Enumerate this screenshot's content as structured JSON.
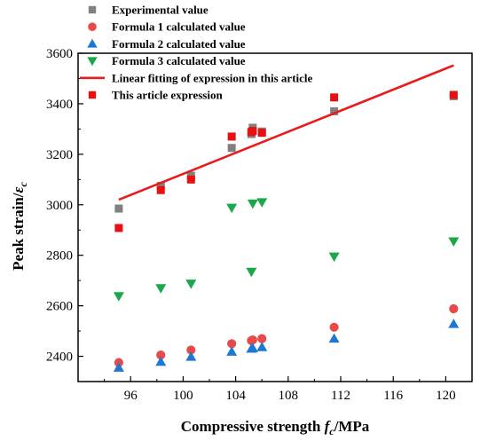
{
  "chart_data": {
    "type": "scatter",
    "xlabel_prefix": "Compressive strength ",
    "xlabel_var": "f",
    "xlabel_sub": "c",
    "xlabel_suffix": "/MPa",
    "ylabel_prefix": "Peak strain/",
    "ylabel_var": "ε",
    "ylabel_sub": "c",
    "xlim": [
      92,
      122
    ],
    "ylim": [
      2300,
      3600
    ],
    "xticks": [
      96,
      100,
      104,
      108,
      112,
      116,
      120
    ],
    "yticks": [
      2400,
      2600,
      2800,
      3000,
      3200,
      3400,
      3600
    ],
    "legend_position": "top-left",
    "series": [
      {
        "name": "Experimental value",
        "marker": "square",
        "color": "#808080",
        "x": [
          95.1,
          98.3,
          100.6,
          103.7,
          105.2,
          105.3,
          106.0,
          111.5,
          120.6
        ],
        "y": [
          2985,
          3075,
          3115,
          3225,
          3280,
          3305,
          3290,
          3370,
          3430
        ]
      },
      {
        "name": "Formula 1 calculated value",
        "marker": "circle",
        "color": "#e84a4a",
        "x": [
          95.1,
          98.3,
          100.6,
          103.7,
          105.2,
          105.3,
          106.0,
          111.5,
          120.6
        ],
        "y": [
          2375,
          2405,
          2425,
          2450,
          2462,
          2465,
          2470,
          2515,
          2588
        ]
      },
      {
        "name": "Formula 2 calculated value",
        "marker": "triangle-up",
        "color": "#1f77d4",
        "x": [
          95.1,
          98.3,
          100.6,
          103.7,
          105.2,
          105.3,
          106.0,
          111.5,
          120.6
        ],
        "y": [
          2355,
          2378,
          2398,
          2418,
          2430,
          2432,
          2436,
          2470,
          2528
        ]
      },
      {
        "name": "Formula 3 calculated value",
        "marker": "triangle-down",
        "color": "#1aa84a",
        "x": [
          95.1,
          98.3,
          100.6,
          103.7,
          105.2,
          105.3,
          106.0,
          111.5,
          120.6
        ],
        "y": [
          2638,
          2670,
          2688,
          2988,
          2735,
          3005,
          3010,
          2795,
          2855
        ]
      },
      {
        "name": "Linear fitting of expression in this article",
        "marker": "line",
        "color": "#e81c1c",
        "x": [
          95.1,
          120.6
        ],
        "y": [
          3020,
          3552
        ]
      },
      {
        "name": "This article expression",
        "marker": "square",
        "color": "#e81010",
        "x": [
          95.1,
          98.3,
          100.6,
          103.7,
          105.2,
          105.3,
          106.0,
          111.5,
          120.6
        ],
        "y": [
          2908,
          3058,
          3100,
          3270,
          3288,
          3292,
          3285,
          3425,
          3435
        ]
      }
    ]
  }
}
